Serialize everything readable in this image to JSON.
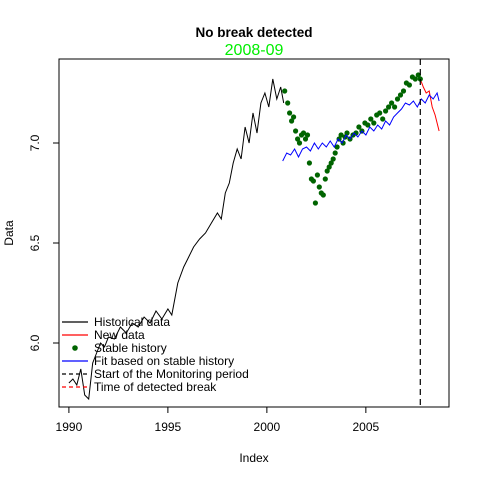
{
  "chart_data": {
    "type": "line",
    "title": "No break detected",
    "subtitle": "2008-09",
    "xlabel": "Index",
    "ylabel": "Data",
    "xlim": [
      1989.5,
      2009.2
    ],
    "ylim": [
      5.68,
      7.42
    ],
    "x_ticks": [
      1990,
      1995,
      2000,
      2005
    ],
    "y_ticks": [
      6.0,
      6.5,
      7.0
    ],
    "x_tick_labels": [
      "1990",
      "1995",
      "2000",
      "2005"
    ],
    "y_tick_labels": [
      "6.0",
      "6.5",
      "7.0"
    ],
    "legend_position": "bottom-left",
    "monitoring_start": 2007.75,
    "colors": {
      "historical": "#000000",
      "new": "#ff0000",
      "stable": "#006400",
      "fit": "#0000ff",
      "monitoring": "#000000",
      "break": "#ff0000",
      "subtitle": "#00ee00"
    },
    "series": [
      {
        "name": "Historical data",
        "style": "line",
        "color": "#000000",
        "points": [
          [
            1990.0,
            5.8
          ],
          [
            1990.2,
            5.82
          ],
          [
            1990.4,
            5.79
          ],
          [
            1990.6,
            5.87
          ],
          [
            1990.8,
            5.74
          ],
          [
            1991.0,
            5.72
          ],
          [
            1991.2,
            5.9
          ],
          [
            1991.4,
            5.95
          ],
          [
            1991.6,
            6.0
          ],
          [
            1991.8,
            5.98
          ],
          [
            1992.0,
            6.03
          ],
          [
            1992.3,
            6.02
          ],
          [
            1992.6,
            6.08
          ],
          [
            1992.9,
            6.05
          ],
          [
            1993.2,
            6.1
          ],
          [
            1993.5,
            6.08
          ],
          [
            1993.8,
            6.13
          ],
          [
            1994.1,
            6.1
          ],
          [
            1994.4,
            6.16
          ],
          [
            1994.7,
            6.12
          ],
          [
            1995.0,
            6.17
          ],
          [
            1995.2,
            6.14
          ],
          [
            1995.5,
            6.3
          ],
          [
            1995.8,
            6.38
          ],
          [
            1996.0,
            6.42
          ],
          [
            1996.3,
            6.48
          ],
          [
            1996.6,
            6.52
          ],
          [
            1996.9,
            6.55
          ],
          [
            1997.2,
            6.6
          ],
          [
            1997.5,
            6.65
          ],
          [
            1997.7,
            6.62
          ],
          [
            1997.9,
            6.75
          ],
          [
            1998.1,
            6.8
          ],
          [
            1998.3,
            6.9
          ],
          [
            1998.5,
            6.97
          ],
          [
            1998.7,
            6.92
          ],
          [
            1998.9,
            7.08
          ],
          [
            1999.1,
            7.0
          ],
          [
            1999.3,
            7.15
          ],
          [
            1999.5,
            7.05
          ],
          [
            1999.7,
            7.2
          ],
          [
            1999.9,
            7.25
          ],
          [
            2000.1,
            7.18
          ],
          [
            2000.3,
            7.32
          ],
          [
            2000.5,
            7.22
          ],
          [
            2000.7,
            7.28
          ],
          [
            2000.85,
            7.2
          ]
        ]
      },
      {
        "name": "New data",
        "style": "line",
        "color": "#ff0000",
        "points": [
          [
            2007.75,
            7.32
          ],
          [
            2007.9,
            7.28
          ],
          [
            2008.05,
            7.25
          ],
          [
            2008.2,
            7.26
          ],
          [
            2008.35,
            7.18
          ],
          [
            2008.5,
            7.14
          ],
          [
            2008.6,
            7.1
          ],
          [
            2008.7,
            7.06
          ]
        ]
      },
      {
        "name": "Stable history",
        "style": "points",
        "color": "#006400",
        "points": [
          [
            2000.9,
            7.26
          ],
          [
            2001.05,
            7.2
          ],
          [
            2001.15,
            7.15
          ],
          [
            2001.25,
            7.11
          ],
          [
            2001.35,
            7.13
          ],
          [
            2001.45,
            7.06
          ],
          [
            2001.55,
            7.02
          ],
          [
            2001.65,
            7.0
          ],
          [
            2001.75,
            7.04
          ],
          [
            2001.85,
            7.05
          ],
          [
            2001.95,
            7.02
          ],
          [
            2002.05,
            7.04
          ],
          [
            2002.15,
            6.9
          ],
          [
            2002.25,
            6.82
          ],
          [
            2002.35,
            6.81
          ],
          [
            2002.45,
            6.7
          ],
          [
            2002.55,
            6.84
          ],
          [
            2002.65,
            6.78
          ],
          [
            2002.75,
            6.75
          ],
          [
            2002.85,
            6.74
          ],
          [
            2002.95,
            6.82
          ],
          [
            2003.05,
            6.86
          ],
          [
            2003.15,
            6.88
          ],
          [
            2003.25,
            6.9
          ],
          [
            2003.35,
            6.92
          ],
          [
            2003.45,
            6.95
          ],
          [
            2003.55,
            6.98
          ],
          [
            2003.65,
            7.02
          ],
          [
            2003.75,
            7.04
          ],
          [
            2003.85,
            7.0
          ],
          [
            2003.95,
            7.03
          ],
          [
            2004.05,
            7.05
          ],
          [
            2004.2,
            7.02
          ],
          [
            2004.35,
            7.04
          ],
          [
            2004.5,
            7.05
          ],
          [
            2004.65,
            7.08
          ],
          [
            2004.8,
            7.06
          ],
          [
            2004.95,
            7.1
          ],
          [
            2005.1,
            7.09
          ],
          [
            2005.25,
            7.12
          ],
          [
            2005.4,
            7.1
          ],
          [
            2005.55,
            7.14
          ],
          [
            2005.7,
            7.15
          ],
          [
            2005.85,
            7.12
          ],
          [
            2006.0,
            7.16
          ],
          [
            2006.15,
            7.18
          ],
          [
            2006.3,
            7.2
          ],
          [
            2006.45,
            7.18
          ],
          [
            2006.6,
            7.22
          ],
          [
            2006.75,
            7.24
          ],
          [
            2006.9,
            7.26
          ],
          [
            2007.05,
            7.3
          ],
          [
            2007.2,
            7.29
          ],
          [
            2007.35,
            7.33
          ],
          [
            2007.5,
            7.32
          ],
          [
            2007.65,
            7.34
          ],
          [
            2007.75,
            7.32
          ]
        ]
      },
      {
        "name": "Fit based on stable history",
        "style": "line",
        "color": "#0000ff",
        "points": [
          [
            2000.8,
            6.91
          ],
          [
            2001.0,
            6.95
          ],
          [
            2001.2,
            6.94
          ],
          [
            2001.4,
            6.97
          ],
          [
            2001.6,
            6.93
          ],
          [
            2001.8,
            6.97
          ],
          [
            2002.0,
            6.98
          ],
          [
            2002.2,
            6.96
          ],
          [
            2002.4,
            7.0
          ],
          [
            2002.6,
            6.97
          ],
          [
            2002.8,
            7.0
          ],
          [
            2003.0,
            6.98
          ],
          [
            2003.2,
            7.01
          ],
          [
            2003.4,
            6.98
          ],
          [
            2003.6,
            7.02
          ],
          [
            2003.8,
            7.0
          ],
          [
            2004.0,
            7.04
          ],
          [
            2004.2,
            7.02
          ],
          [
            2004.4,
            7.05
          ],
          [
            2004.6,
            7.03
          ],
          [
            2004.8,
            7.06
          ],
          [
            2005.0,
            7.04
          ],
          [
            2005.2,
            7.08
          ],
          [
            2005.4,
            7.06
          ],
          [
            2005.6,
            7.09
          ],
          [
            2005.8,
            7.07
          ],
          [
            2006.0,
            7.11
          ],
          [
            2006.2,
            7.09
          ],
          [
            2006.4,
            7.13
          ],
          [
            2006.6,
            7.15
          ],
          [
            2006.8,
            7.17
          ],
          [
            2007.0,
            7.2
          ],
          [
            2007.2,
            7.19
          ],
          [
            2007.4,
            7.21
          ],
          [
            2007.6,
            7.18
          ],
          [
            2007.8,
            7.22
          ],
          [
            2008.0,
            7.2
          ],
          [
            2008.2,
            7.24
          ],
          [
            2008.4,
            7.22
          ],
          [
            2008.6,
            7.25
          ],
          [
            2008.7,
            7.21
          ]
        ]
      }
    ],
    "legend": [
      {
        "label": "Historical data",
        "kind": "line",
        "color": "#000000",
        "dash": "solid"
      },
      {
        "label": "New data",
        "kind": "line",
        "color": "#ff0000",
        "dash": "solid"
      },
      {
        "label": "Stable history",
        "kind": "point",
        "color": "#006400",
        "dash": "solid"
      },
      {
        "label": "Fit based on stable history",
        "kind": "line",
        "color": "#0000ff",
        "dash": "solid"
      },
      {
        "label": "Start of the Monitoring period",
        "kind": "line",
        "color": "#000000",
        "dash": "dashed"
      },
      {
        "label": "Time of detected break",
        "kind": "line",
        "color": "#ff0000",
        "dash": "dashed"
      }
    ]
  }
}
